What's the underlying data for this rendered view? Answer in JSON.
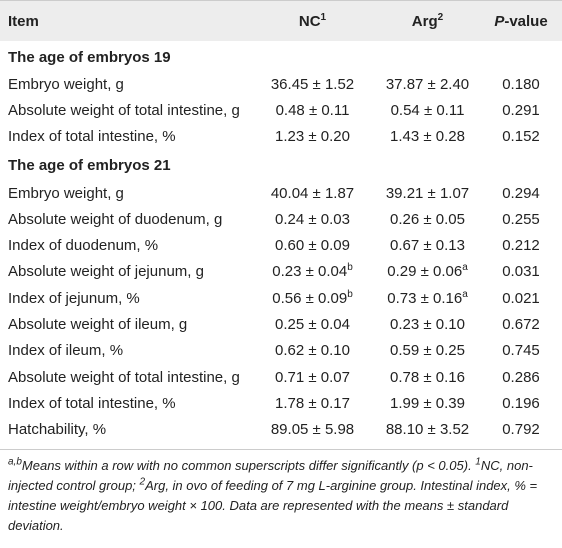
{
  "table": {
    "header": [
      {
        "text": "Item"
      },
      {
        "text": "NC",
        "sup": "1"
      },
      {
        "text": "Arg",
        "sup": "2"
      },
      {
        "italic": "P",
        "text": "-value"
      }
    ],
    "sections": [
      {
        "title": "The age of embryos 19",
        "rows": [
          [
            "Embryo weight, g",
            "36.45 ± 1.52",
            "37.87 ± 2.40",
            "0.180"
          ],
          [
            "Absolute weight of total intestine, g",
            "0.48 ± 0.11",
            "0.54 ± 0.11",
            "0.291"
          ],
          [
            "Index of total intestine, %",
            "1.23 ± 0.20",
            "1.43 ± 0.28",
            "0.152"
          ]
        ]
      },
      {
        "title": "The age of embryos 21",
        "rows": [
          [
            "Embryo weight, g",
            "40.04 ± 1.87",
            "39.21 ± 1.07",
            "0.294"
          ],
          [
            "Absolute weight of duodenum, g",
            "0.24 ± 0.03",
            "0.26 ± 0.05",
            "0.255"
          ],
          [
            "Index of duodenum, %",
            "0.60 ± 0.09",
            "0.67 ± 0.13",
            "0.212"
          ],
          [
            "Absolute weight of jejunum, g",
            {
              "text": "0.23 ± 0.04",
              "sup": "b"
            },
            {
              "text": "0.29 ± 0.06",
              "sup": "a"
            },
            "0.031"
          ],
          [
            "Index of jejunum, %",
            {
              "text": "0.56 ± 0.09",
              "sup": "b"
            },
            {
              "text": "0.73 ± 0.16",
              "sup": "a"
            },
            "0.021"
          ],
          [
            "Absolute weight of ileum, g",
            "0.25 ± 0.04",
            "0.23 ± 0.10",
            "0.672"
          ],
          [
            "Index of ileum, %",
            "0.62 ± 0.10",
            "0.59 ± 0.25",
            "0.745"
          ],
          [
            "Absolute weight of total intestine, g",
            "0.71 ± 0.07",
            "0.78 ± 0.16",
            "0.286"
          ],
          [
            "Index of total intestine, %",
            "1.78 ± 0.17",
            "1.99 ± 0.39",
            "0.196"
          ],
          [
            "Hatchability, %",
            "89.05 ± 5.98",
            "88.10 ± 3.52",
            "0.792"
          ]
        ]
      }
    ]
  },
  "footnote": [
    {
      "sup": "a,b"
    },
    {
      "text": "Means within a row with no common superscripts differ significantly (p < 0.05). "
    },
    {
      "sup": "1"
    },
    {
      "text": "NC, non-injected control group; "
    },
    {
      "sup": "2"
    },
    {
      "text": "Arg, in ovo of feeding of 7 mg L-arginine group. Intestinal index, % = intestine weight/embryo weight × 100. Data are represented with the means ± standard deviation."
    }
  ]
}
